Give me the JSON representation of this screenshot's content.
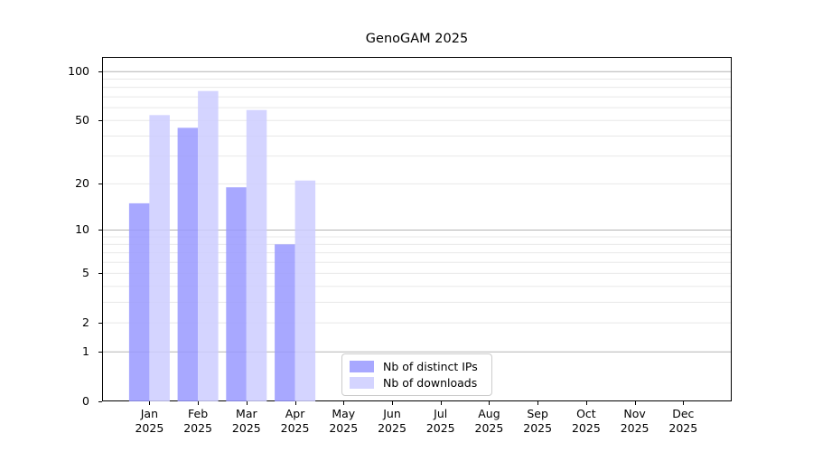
{
  "chart_data": {
    "type": "bar",
    "title": "GenoGAM 2025",
    "x_tick_labels": [
      [
        "Jan",
        "2025"
      ],
      [
        "Feb",
        "2025"
      ],
      [
        "Mar",
        "2025"
      ],
      [
        "Apr",
        "2025"
      ],
      [
        "May",
        "2025"
      ],
      [
        "Jun",
        "2025"
      ],
      [
        "Jul",
        "2025"
      ],
      [
        "Aug",
        "2025"
      ],
      [
        "Sep",
        "2025"
      ],
      [
        "Oct",
        "2025"
      ],
      [
        "Nov",
        "2025"
      ],
      [
        "Dec",
        "2025"
      ]
    ],
    "series": [
      {
        "name": "Nb of distinct IPs",
        "color": "#9999ff",
        "fill_alpha": 0.85,
        "values": [
          15,
          45,
          19,
          8,
          null,
          null,
          null,
          null,
          null,
          null,
          null,
          null
        ]
      },
      {
        "name": "Nb of downloads",
        "color": "#ccccff",
        "fill_alpha": 0.85,
        "values": [
          54,
          76,
          58,
          21,
          null,
          null,
          null,
          null,
          null,
          null,
          null,
          null
        ]
      }
    ],
    "yaxis": {
      "scale": "log10(value+1)",
      "tick_values": [
        0,
        1,
        2,
        5,
        10,
        20,
        50,
        100
      ],
      "tick_labels": [
        "0",
        "1",
        "2",
        "5",
        "10",
        "20",
        "50",
        "100"
      ],
      "major_gridlines": [
        1,
        10,
        100
      ],
      "minor_gridlines": [
        2,
        3,
        4,
        5,
        6,
        7,
        8,
        9,
        20,
        30,
        40,
        50,
        60,
        70,
        80,
        90
      ],
      "ylim": [
        0,
        123
      ]
    },
    "grid": "horizontal",
    "legend": {
      "position": "lower center",
      "entries": [
        "Nb of distinct IPs",
        "Nb of downloads"
      ]
    }
  },
  "colors": {
    "bar_distinct_ips": "#9999ff",
    "bar_downloads": "#ccccff",
    "major_grid": "#b4b4b4",
    "minor_grid": "#e8e8e8",
    "spine": "#000000",
    "legend_border": "#cccccc",
    "background": "#ffffff",
    "text": "#000000"
  }
}
